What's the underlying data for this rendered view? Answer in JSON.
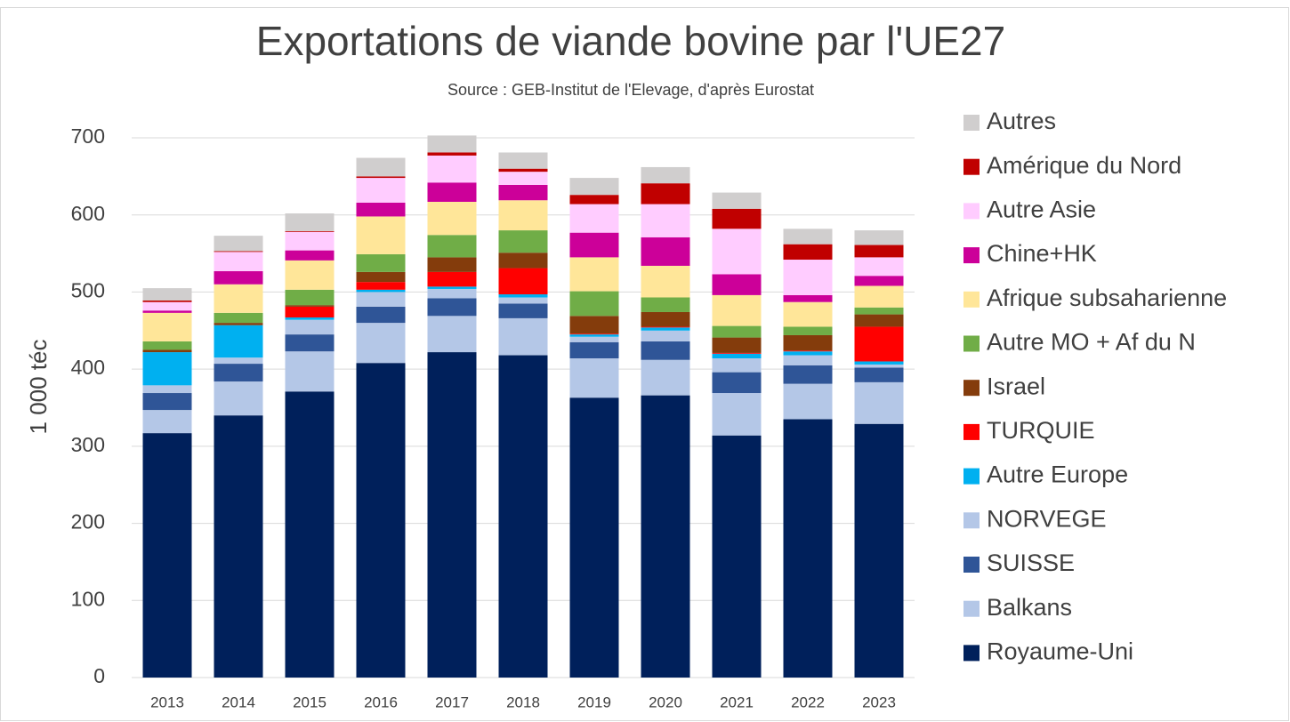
{
  "chart_data": {
    "type": "stacked_bar",
    "title": "Exportations de viande bovine par l'UE27",
    "subtitle": "Source : GEB-Institut de l'Elevage, d'après Eurostat",
    "y_label": "1 000 téc",
    "categories": [
      "2013",
      "2014",
      "2015",
      "2016",
      "2017",
      "2018",
      "2019",
      "2020",
      "2021",
      "2022",
      "2023"
    ],
    "ylim": [
      0,
      700
    ],
    "yticks": [
      0,
      100,
      200,
      300,
      400,
      500,
      600,
      700
    ],
    "grid": true,
    "legend": "right",
    "series": [
      {
        "name": "Royaume-Uni",
        "color": "#00205b",
        "values": [
          317,
          340,
          371,
          408,
          422,
          418,
          363,
          366,
          314,
          335,
          329
        ]
      },
      {
        "name": "Balkans",
        "color": "#b4c7e7",
        "values": [
          30,
          44,
          52,
          52,
          47,
          48,
          51,
          46,
          55,
          46,
          54
        ]
      },
      {
        "name": "SUISSE",
        "color": "#2f5597",
        "values": [
          22,
          23,
          22,
          21,
          23,
          19,
          21,
          24,
          27,
          24,
          19
        ]
      },
      {
        "name": "NORVEGE",
        "color": "#b4c7e7",
        "values": [
          10,
          8,
          19,
          19,
          12,
          8,
          7,
          14,
          18,
          13,
          4
        ]
      },
      {
        "name": "Autre Europe",
        "color": "#00b0f0",
        "values": [
          43,
          42,
          3,
          3,
          3,
          4,
          3,
          4,
          6,
          5,
          4
        ]
      },
      {
        "name": "TURQUIE",
        "color": "#ff0000",
        "values": [
          0,
          0,
          14,
          10,
          19,
          34,
          1,
          1,
          1,
          1,
          45
        ]
      },
      {
        "name": "Israel",
        "color": "#843c0c",
        "values": [
          3,
          3,
          2,
          13,
          19,
          20,
          23,
          19,
          20,
          20,
          16
        ]
      },
      {
        "name": "Autre MO + Af du N",
        "color": "#70ad47",
        "values": [
          11,
          13,
          20,
          23,
          29,
          29,
          32,
          19,
          15,
          11,
          9
        ]
      },
      {
        "name": "Afrique subsaharienne",
        "color": "#ffe699",
        "values": [
          37,
          37,
          38,
          49,
          43,
          39,
          44,
          41,
          40,
          32,
          28
        ]
      },
      {
        "name": "Chine+HK",
        "color": "#cc0099",
        "values": [
          3,
          17,
          13,
          18,
          25,
          20,
          32,
          37,
          27,
          9,
          13
        ]
      },
      {
        "name": "Autre Asie",
        "color": "#ffccff",
        "values": [
          11,
          25,
          24,
          32,
          35,
          17,
          37,
          43,
          59,
          46,
          24
        ]
      },
      {
        "name": "Amérique du Nord",
        "color": "#c00000",
        "values": [
          2,
          1,
          1,
          2,
          4,
          4,
          12,
          27,
          26,
          20,
          16
        ]
      },
      {
        "name": "Autres",
        "color": "#d0cece",
        "values": [
          16,
          20,
          23,
          24,
          22,
          21,
          22,
          21,
          21,
          20,
          19
        ]
      }
    ]
  }
}
